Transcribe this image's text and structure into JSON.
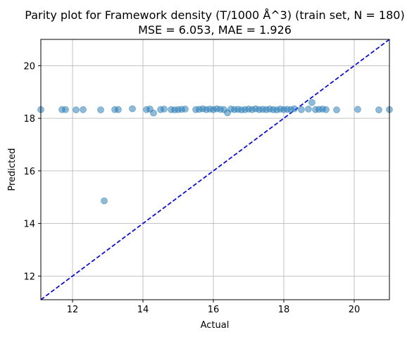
{
  "chart_data": {
    "type": "scatter",
    "title": "Parity plot for Framework density (T/1000 Å^3) (train set, N = 180)",
    "subtitle": "MSE = 6.053, MAE = 1.926",
    "xlabel": "Actual",
    "ylabel": "Predicted",
    "xlim": [
      11.1,
      21.0
    ],
    "ylim": [
      11.1,
      21.0
    ],
    "xticks": [
      12,
      14,
      16,
      18,
      20
    ],
    "yticks": [
      12,
      14,
      16,
      18,
      20
    ],
    "grid": true,
    "point_color": "#1f77b4",
    "point_alpha": 0.5,
    "reference_line": {
      "from": [
        11.1,
        11.1
      ],
      "to": [
        21.0,
        21.0
      ],
      "color": "#0000ff",
      "style": "dashed"
    },
    "series": [
      {
        "points": [
          [
            11.1,
            18.33
          ],
          [
            11.7,
            18.33
          ],
          [
            11.8,
            18.33
          ],
          [
            12.1,
            18.32
          ],
          [
            12.3,
            18.33
          ],
          [
            12.8,
            18.32
          ],
          [
            12.9,
            14.86
          ],
          [
            13.2,
            18.33
          ],
          [
            13.3,
            18.33
          ],
          [
            13.7,
            18.36
          ],
          [
            14.1,
            18.33
          ],
          [
            14.2,
            18.35
          ],
          [
            14.3,
            18.2
          ],
          [
            14.5,
            18.33
          ],
          [
            14.6,
            18.35
          ],
          [
            14.8,
            18.33
          ],
          [
            14.9,
            18.32
          ],
          [
            15.0,
            18.33
          ],
          [
            15.1,
            18.34
          ],
          [
            15.2,
            18.35
          ],
          [
            15.5,
            18.33
          ],
          [
            15.6,
            18.34
          ],
          [
            15.7,
            18.36
          ],
          [
            15.8,
            18.33
          ],
          [
            15.9,
            18.35
          ],
          [
            16.0,
            18.33
          ],
          [
            16.1,
            18.36
          ],
          [
            16.2,
            18.34
          ],
          [
            16.3,
            18.33
          ],
          [
            16.4,
            18.21
          ],
          [
            16.5,
            18.35
          ],
          [
            16.6,
            18.33
          ],
          [
            16.7,
            18.34
          ],
          [
            16.8,
            18.32
          ],
          [
            16.9,
            18.33
          ],
          [
            17.0,
            18.35
          ],
          [
            17.1,
            18.33
          ],
          [
            17.2,
            18.36
          ],
          [
            17.3,
            18.33
          ],
          [
            17.4,
            18.34
          ],
          [
            17.5,
            18.33
          ],
          [
            17.6,
            18.35
          ],
          [
            17.7,
            18.33
          ],
          [
            17.8,
            18.32
          ],
          [
            17.9,
            18.35
          ],
          [
            18.0,
            18.33
          ],
          [
            18.1,
            18.34
          ],
          [
            18.2,
            18.33
          ],
          [
            18.3,
            18.36
          ],
          [
            18.5,
            18.33
          ],
          [
            18.7,
            18.35
          ],
          [
            18.8,
            18.6
          ],
          [
            18.9,
            18.33
          ],
          [
            19.0,
            18.34
          ],
          [
            19.1,
            18.35
          ],
          [
            19.2,
            18.33
          ],
          [
            19.5,
            18.32
          ],
          [
            20.1,
            18.34
          ],
          [
            20.7,
            18.32
          ],
          [
            21.0,
            18.33
          ]
        ]
      }
    ]
  }
}
